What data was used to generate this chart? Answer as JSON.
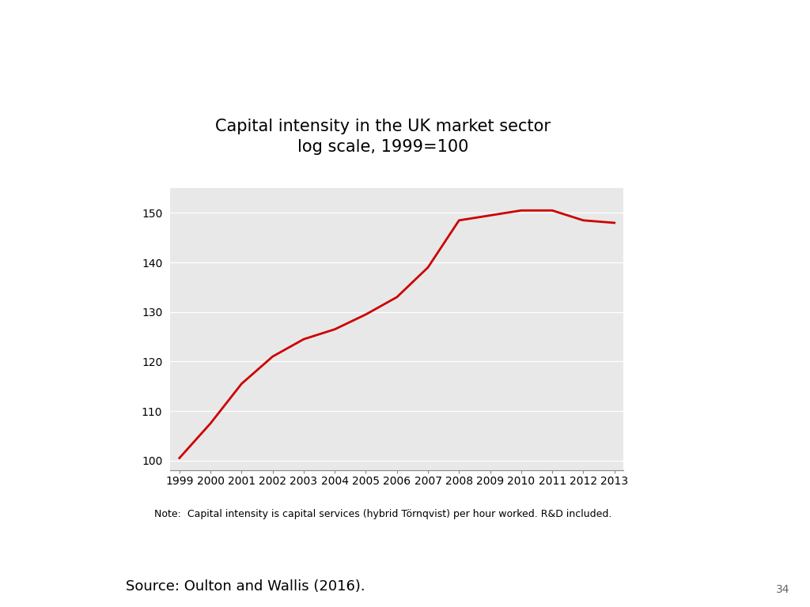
{
  "title_line1": "Capital intensity in the UK market sector",
  "title_line2": "log scale, 1999=100",
  "note": "Note:  Capital intensity is capital services (hybrid Törnqvist) per hour worked. R&D included.",
  "source": "Source: Oulton and Wallis (2016).",
  "page_number": "34",
  "years": [
    1999,
    2000,
    2001,
    2002,
    2003,
    2004,
    2005,
    2006,
    2007,
    2008,
    2009,
    2010,
    2011,
    2012,
    2013
  ],
  "values": [
    100.5,
    107.5,
    115.5,
    121.0,
    124.5,
    126.5,
    129.5,
    133.0,
    139.0,
    148.5,
    149.5,
    150.5,
    150.5,
    148.5,
    148.0
  ],
  "line_color": "#cc0000",
  "line_width": 2.0,
  "ylim": [
    98,
    155
  ],
  "yticks": [
    100,
    110,
    120,
    130,
    140,
    150
  ],
  "bg_color": "#e8e8e8",
  "outer_bg_color": "#ffffff",
  "title_fontsize": 15,
  "note_fontsize": 9,
  "source_fontsize": 13,
  "tick_fontsize": 10,
  "page_fontsize": 10
}
